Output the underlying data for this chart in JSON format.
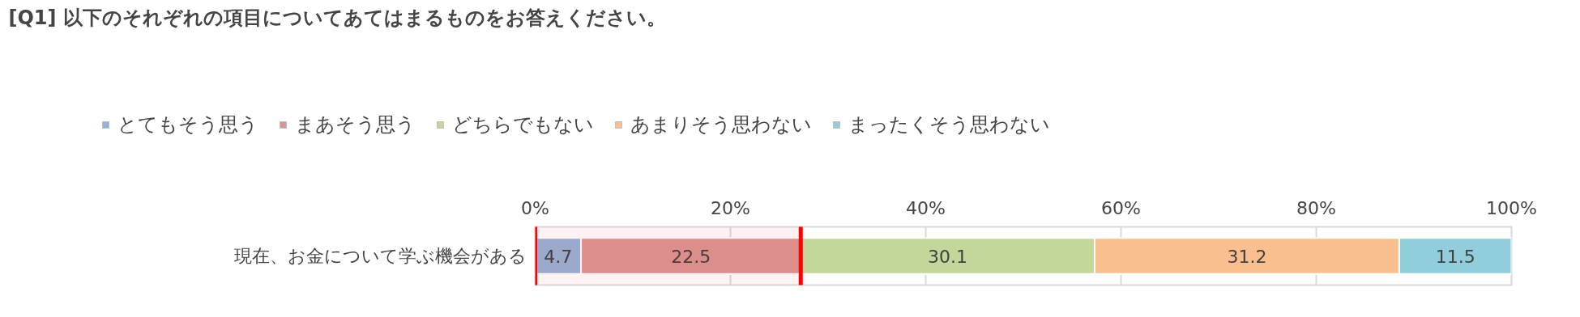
{
  "chart_data": {
    "type": "bar",
    "orientation": "horizontal",
    "stacked": true,
    "title": "[Q1] 以下のそれぞれの項目についてあてはまるものをお答えください。",
    "categories": [
      "現在、お金について学ぶ機会がある"
    ],
    "series": [
      {
        "name": "とてもそう思う",
        "color": "#95b3d7",
        "values": [
          4.7
        ]
      },
      {
        "name": "まあそう思う",
        "color": "#da9694",
        "values": [
          22.5
        ]
      },
      {
        "name": "どちらでもない",
        "color": "#c4d79b",
        "values": [
          30.1
        ]
      },
      {
        "name": "あまりそう思わない",
        "color": "#fabf8f",
        "values": [
          31.2
        ]
      },
      {
        "name": "まったくそう思わない",
        "color": "#92cddc",
        "values": [
          11.5
        ]
      }
    ],
    "xlim": [
      0,
      100
    ],
    "xticks": [
      {
        "value": 0,
        "label": "0%"
      },
      {
        "value": 20,
        "label": "20%"
      },
      {
        "value": 40,
        "label": "40%"
      },
      {
        "value": 60,
        "label": "60%"
      },
      {
        "value": 80,
        "label": "80%"
      },
      {
        "value": 100,
        "label": "100%"
      }
    ],
    "grid": "x",
    "legend": "top",
    "data_labels": true,
    "bands": [
      {
        "axis": "x",
        "from": 0,
        "to": 27.2,
        "color": "#ff0000"
      }
    ]
  }
}
